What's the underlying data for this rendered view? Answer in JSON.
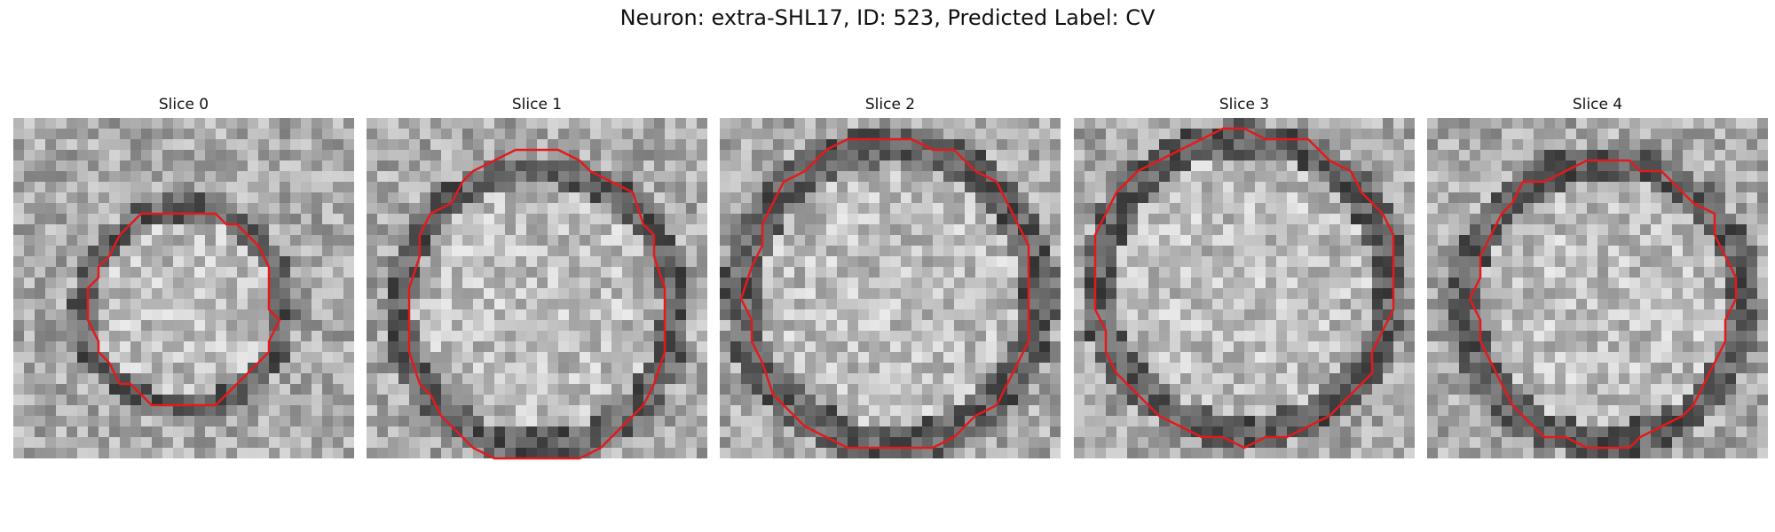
{
  "figure": {
    "title": "Neuron: extra-SHL17, ID: 523, Predicted Label: CV",
    "contour_color": "#e31a1c",
    "slices": [
      {
        "label": "Slice 0",
        "center": [
          0.5,
          0.56
        ],
        "inner_radius": 0.26,
        "outer_radius": 0.33,
        "contour_radius": [
          0.27,
          0.29
        ]
      },
      {
        "label": "Slice 1",
        "center": [
          0.5,
          0.56
        ],
        "inner_radius": 0.36,
        "outer_radius": 0.45,
        "contour_radius": [
          0.38,
          0.46
        ]
      },
      {
        "label": "Slice 2",
        "center": [
          0.5,
          0.52
        ],
        "inner_radius": 0.38,
        "outer_radius": 0.49,
        "contour_radius": [
          0.42,
          0.46
        ]
      },
      {
        "label": "Slice 3",
        "center": [
          0.5,
          0.49
        ],
        "inner_radius": 0.38,
        "outer_radius": 0.48,
        "contour_radius": [
          0.44,
          0.46
        ]
      },
      {
        "label": "Slice 4",
        "center": [
          0.52,
          0.54
        ],
        "inner_radius": 0.36,
        "outer_radius": 0.46,
        "contour_radius": [
          0.38,
          0.42
        ]
      }
    ]
  }
}
